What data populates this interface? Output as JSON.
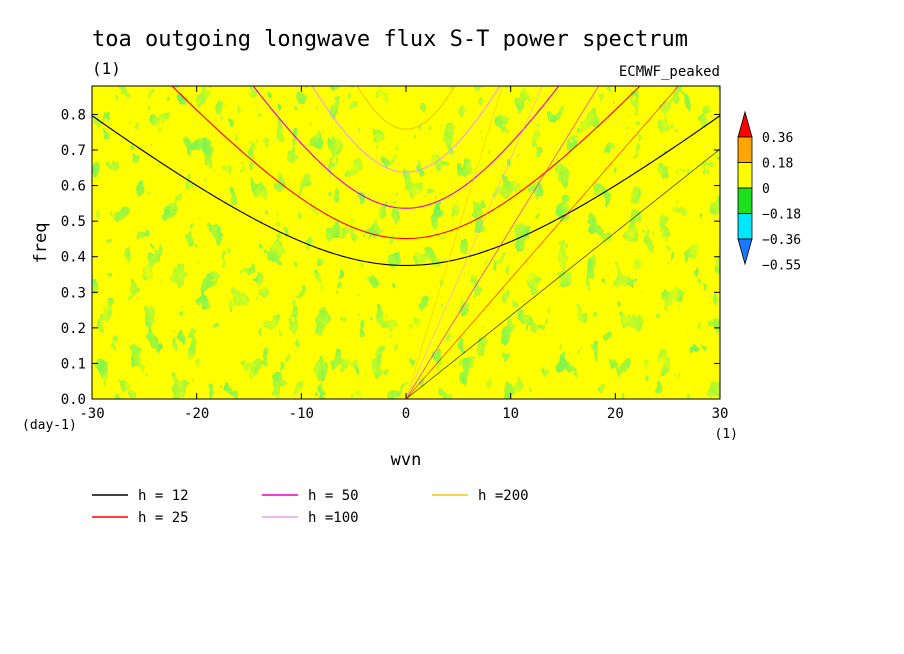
{
  "chart_data": {
    "type": "heatmap",
    "title": "toa outgoing longwave flux S-T power spectrum",
    "subtitle_left": "(1)",
    "subtitle_right": "ECMWF_peaked",
    "xlabel": "wvn",
    "ylabel": "freq",
    "x_unit": "(1)",
    "y_unit": "(day-1)",
    "xlim": [
      -30,
      30
    ],
    "ylim": [
      0,
      0.88
    ],
    "xticks": [
      -30,
      -20,
      -10,
      0,
      10,
      20,
      30
    ],
    "xtick_labels": [
      "-30",
      "-20",
      "-10",
      "0",
      "10",
      "20",
      "30"
    ],
    "yticks": [
      0,
      0.1,
      0.2,
      0.3,
      0.4,
      0.5,
      0.6,
      0.7,
      0.8
    ],
    "ytick_labels": [
      "0.0",
      "0.1",
      "0.2",
      "0.3",
      "0.4",
      "0.5",
      "0.6",
      "0.7",
      "0.8"
    ],
    "colorbar": {
      "levels": [
        -0.55,
        -0.36,
        -0.18,
        0,
        0.18,
        0.36
      ],
      "labels": [
        "-0.55",
        "-0.36",
        "-0.18",
        "0",
        "0.18",
        "0.36"
      ],
      "colors": [
        "#1e78ff",
        "#00e6ff",
        "#1ee11e",
        "#ffff00",
        "#ffa500",
        "#ff0000"
      ]
    },
    "series": [
      {
        "name": "h = 12",
        "color": "#000000",
        "h": 12
      },
      {
        "name": "h = 25",
        "color": "#ff0000",
        "h": 25
      },
      {
        "name": "h = 50",
        "color": "#e600c8",
        "h": 50
      },
      {
        "name": "h =100",
        "color": "#e6a0e6",
        "h": 100
      },
      {
        "name": "h =200",
        "color": "#f0c814",
        "h": 200
      }
    ]
  }
}
